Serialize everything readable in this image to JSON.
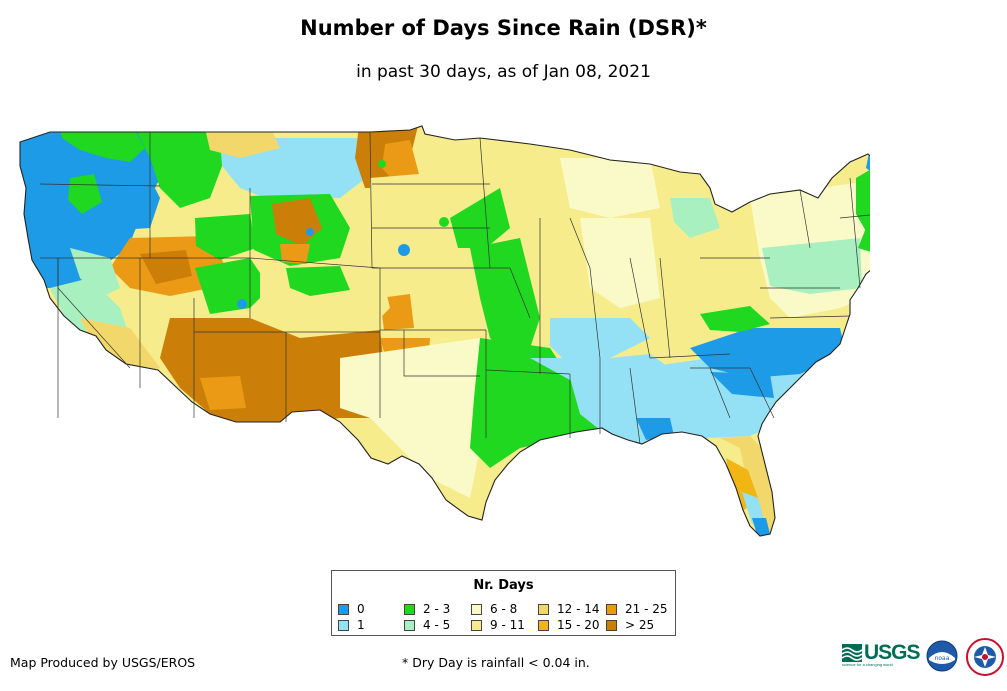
{
  "title": "Number of Days Since Rain (DSR)*",
  "subtitle": "in past 30 days, as of Jan 08, 2021",
  "legend": {
    "title": "Nr. Days",
    "items": [
      {
        "label": "0",
        "color": "#1e9be6"
      },
      {
        "label": "1",
        "color": "#94e1f5"
      },
      {
        "label": "2 - 3",
        "color": "#1fd81f"
      },
      {
        "label": "4 - 5",
        "color": "#a8f0c0"
      },
      {
        "label": "6 - 8",
        "color": "#fafac8"
      },
      {
        "label": "9 - 11",
        "color": "#f6ec8c"
      },
      {
        "label": "12 - 14",
        "color": "#f2d76a"
      },
      {
        "label": "15 - 20",
        "color": "#f2b614"
      },
      {
        "label": "21 - 25",
        "color": "#ea9a14"
      },
      {
        "label": "> 25",
        "color": "#cc7f08"
      }
    ]
  },
  "footer": {
    "credit": "Map Produced by USGS/EROS",
    "note": "* Dry Day is rainfall < 0.04 in."
  },
  "logos": {
    "usgs_text": "USGS",
    "usgs_tagline": "science for a changing world",
    "noaa_text": "noaa"
  }
}
